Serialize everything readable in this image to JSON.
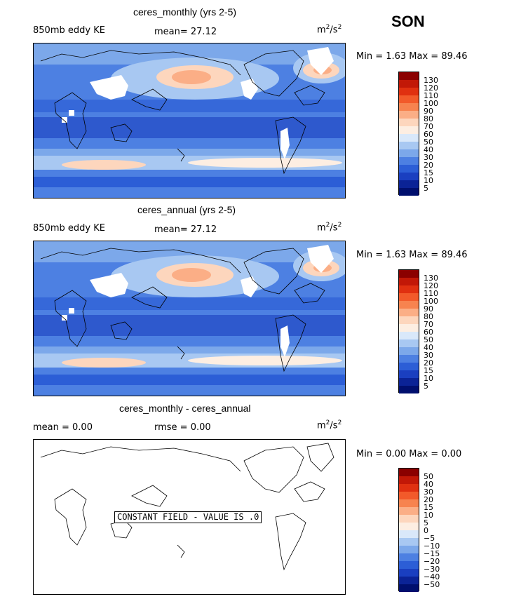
{
  "season": "SON",
  "unit_base": "m",
  "unit_exp1": "2",
  "unit_mid": "/s",
  "unit_exp2": "2",
  "panels": [
    {
      "title": "ceres_monthly (yrs 2-5)",
      "left_label": "850mb eddy KE",
      "mid_label": "mean=  27.12",
      "min_max": "Min =    1.63 Max =   89.46",
      "colorbar_ticks": [
        "130",
        "120",
        "110",
        "100",
        "90",
        "80",
        "70",
        "60",
        "50",
        "40",
        "30",
        "20",
        "15",
        "10",
        "5"
      ]
    },
    {
      "title": "ceres_annual (yrs 2-5)",
      "left_label": "850mb eddy KE",
      "mid_label": "mean=  27.12",
      "min_max": "Min =    1.63 Max =   89.46",
      "colorbar_ticks": [
        "130",
        "120",
        "110",
        "100",
        "90",
        "80",
        "70",
        "60",
        "50",
        "40",
        "30",
        "20",
        "15",
        "10",
        "5"
      ]
    },
    {
      "title": "ceres_monthly - ceres_annual",
      "left_label": "mean =    0.00",
      "mid_label": "rmse =    0.00",
      "min_max": "Min =    0.00 Max =    0.00",
      "colorbar_ticks": [
        "50",
        "40",
        "30",
        "20",
        "15",
        "10",
        "5",
        "0",
        "−5",
        "−10",
        "−15",
        "−20",
        "−30",
        "−40",
        "−50"
      ],
      "notice": "CONSTANT FIELD - VALUE IS .0"
    }
  ],
  "colors": {
    "ke_scale": [
      "#8b0000",
      "#c21807",
      "#e03010",
      "#f25a2a",
      "#f7834f",
      "#fbae86",
      "#fdd6bd",
      "#fdeee2",
      "#d9e8fa",
      "#a8c8f2",
      "#7ca8ea",
      "#4d80e2",
      "#2c5ed6",
      "#1a3fc0",
      "#0b2396",
      "#000f6e"
    ],
    "diff_scale": [
      "#8b0000",
      "#c21807",
      "#e03010",
      "#f25a2a",
      "#f7834f",
      "#fbae86",
      "#fdd6bd",
      "#fdeee2",
      "#d9e8fa",
      "#a8c8f2",
      "#7ca8ea",
      "#4d80e2",
      "#2c5ed6",
      "#1a3fc0",
      "#0b2396",
      "#000f6e"
    ]
  }
}
